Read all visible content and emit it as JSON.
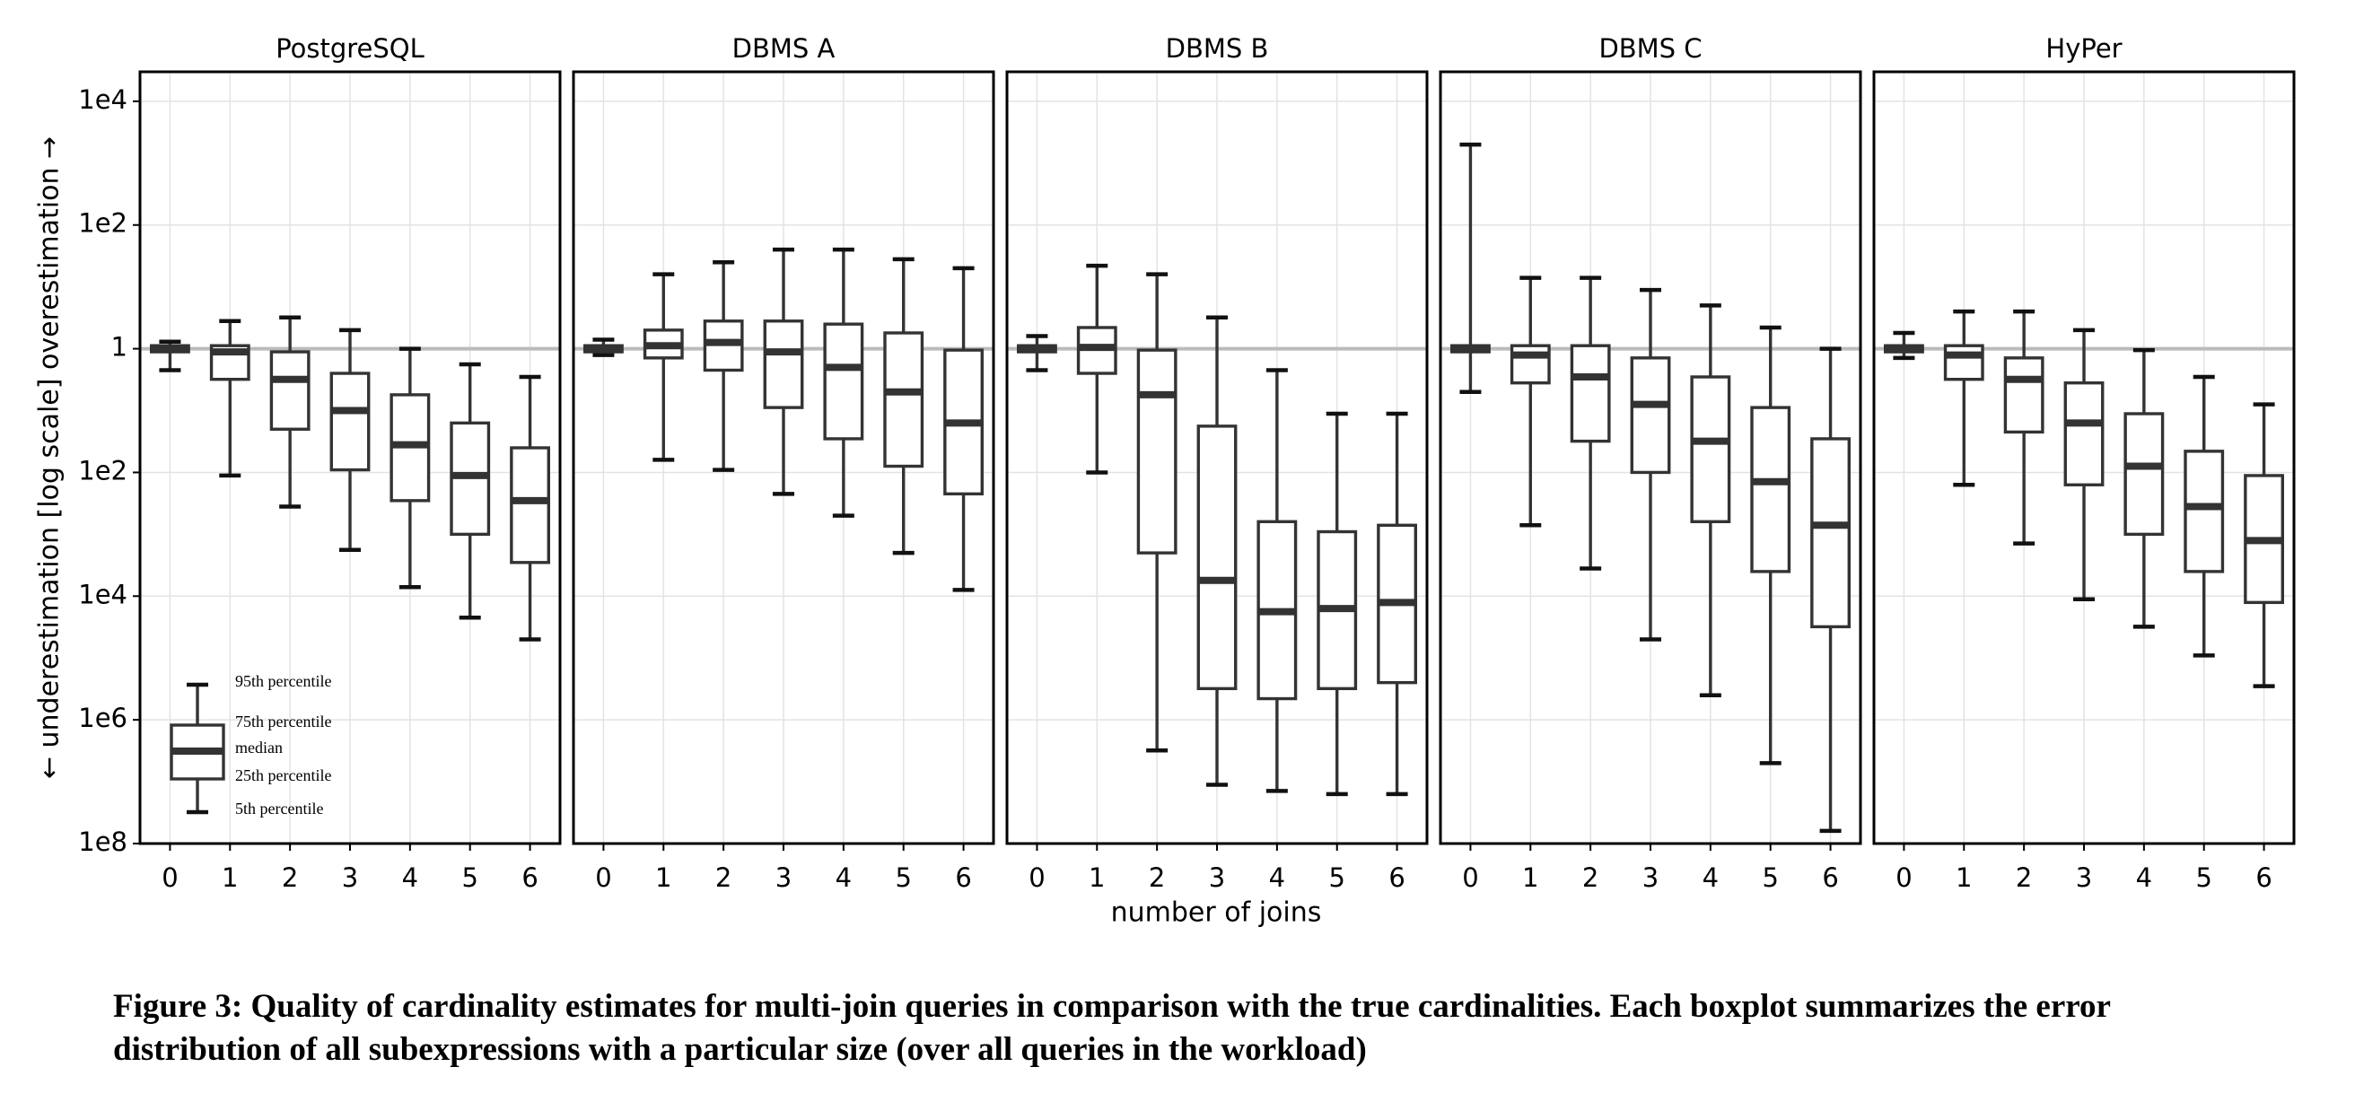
{
  "chart_data": {
    "type": "box",
    "y_label": "← underestimation   [log scale]   overestimation →",
    "x_label": "number of joins",
    "categories": [
      "0",
      "1",
      "2",
      "3",
      "4",
      "5",
      "6"
    ],
    "log_scale": true,
    "grid": true,
    "reference_line": 1,
    "ylim": [
      1e-08,
      30000
    ],
    "yticks": [
      {
        "value": 1e-08,
        "label": "1e8"
      },
      {
        "value": 1e-06,
        "label": "1e6"
      },
      {
        "value": 0.0001,
        "label": "1e4"
      },
      {
        "value": 0.01,
        "label": "1e2"
      },
      1,
      {
        "value": 100,
        "label": "1e2"
      },
      {
        "value": 10000,
        "label": "1e4"
      }
    ],
    "legend_corner": "bottom-left",
    "legend": {
      "p95": "95th percentile",
      "q3": "75th percentile",
      "median": "median",
      "q1": "25th percentile",
      "p5": "5th percentile"
    },
    "panels": [
      {
        "title": "PostgreSQL",
        "p5": [
          0.45,
          0.0089,
          0.0028,
          0.00056,
          0.00014,
          4.5e-05,
          2e-05
        ],
        "q1": [
          0.89,
          0.32,
          0.05,
          0.011,
          0.0035,
          0.001,
          0.00035
        ],
        "median": [
          1,
          0.89,
          0.32,
          0.1,
          0.028,
          0.0089,
          0.0035
        ],
        "q3": [
          1.12,
          1.12,
          0.89,
          0.4,
          0.18,
          0.063,
          0.025
        ],
        "p95": [
          1.3,
          2.8,
          3.2,
          2.0,
          1,
          0.56,
          0.35
        ]
      },
      {
        "title": "DBMS A",
        "p5": [
          0.79,
          0.016,
          0.011,
          0.0045,
          0.002,
          0.0005,
          0.000126
        ],
        "q1": [
          0.89,
          0.71,
          0.45,
          0.112,
          0.035,
          0.0126,
          0.0045
        ],
        "median": [
          1,
          1.12,
          1.26,
          0.89,
          0.5,
          0.2,
          0.063
        ],
        "q3": [
          1.12,
          2.0,
          2.8,
          2.8,
          2.5,
          1.8,
          0.95
        ],
        "p95": [
          1.4,
          16,
          25,
          40,
          40,
          28,
          20
        ]
      },
      {
        "title": "DBMS B",
        "p5": [
          0.45,
          0.01,
          3.2e-07,
          8.9e-08,
          7.1e-08,
          6.3e-08,
          6.3e-08
        ],
        "q1": [
          0.89,
          0.4,
          0.0005,
          3.2e-06,
          2.2e-06,
          3.2e-06,
          4e-06
        ],
        "median": [
          1,
          1.05,
          0.18,
          0.00018,
          5.6e-05,
          6.3e-05,
          7.9e-05
        ],
        "q3": [
          1.12,
          2.2,
          0.95,
          0.056,
          0.0016,
          0.0011,
          0.0014
        ],
        "p95": [
          1.6,
          22,
          16,
          3.2,
          0.45,
          0.089,
          0.089
        ]
      },
      {
        "title": "DBMS C",
        "p5": [
          0.2,
          0.0014,
          0.00028,
          2e-05,
          2.5e-06,
          2e-07,
          1.6e-08
        ],
        "q1": [
          0.89,
          0.28,
          0.032,
          0.01,
          0.0016,
          0.00025,
          3.2e-05
        ],
        "median": [
          1,
          0.79,
          0.35,
          0.126,
          0.032,
          0.0071,
          0.0014
        ],
        "q3": [
          1.12,
          1.12,
          1.12,
          0.71,
          0.35,
          0.112,
          0.035
        ],
        "p95": [
          2000,
          14,
          14,
          8.9,
          5,
          2.2,
          1
        ]
      },
      {
        "title": "HyPer",
        "p5": [
          0.71,
          0.0063,
          0.00071,
          8.9e-05,
          3.2e-05,
          1.1e-05,
          3.5e-06
        ],
        "q1": [
          0.89,
          0.32,
          0.045,
          0.0063,
          0.001,
          0.00025,
          7.9e-05
        ],
        "median": [
          1,
          0.79,
          0.32,
          0.063,
          0.0126,
          0.0028,
          0.00079
        ],
        "q3": [
          1.12,
          1.12,
          0.71,
          0.28,
          0.089,
          0.022,
          0.0089
        ],
        "p95": [
          1.8,
          4,
          4,
          2,
          0.95,
          0.35,
          0.126
        ]
      }
    ],
    "caption": "Figure 3: Quality of cardinality estimates for multi-join queries in comparison with the true cardinalities. Each boxplot summarizes the error distribution of all subexpressions with a particular size (over all queries in the workload)"
  }
}
